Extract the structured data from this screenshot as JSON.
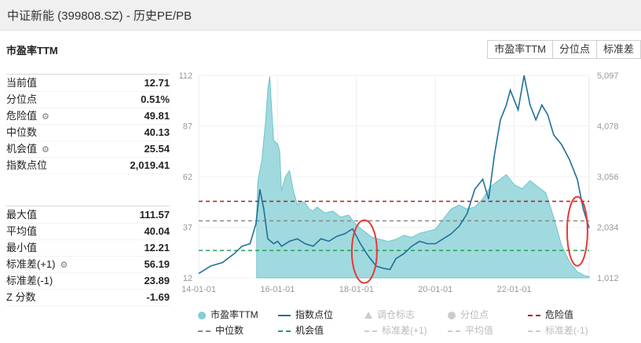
{
  "header": {
    "title": "中证新能 (399808.SZ) - 历史PE/PB"
  },
  "metric": {
    "label": "市盈率TTM"
  },
  "tabs": [
    "市盈率TTM",
    "分位点",
    "标准差"
  ],
  "stats_top": [
    {
      "label": "当前值",
      "value": "12.71",
      "gear": false
    },
    {
      "label": "分位点",
      "value": "0.51%",
      "gear": false
    },
    {
      "label": "危险值",
      "value": "49.81",
      "gear": true
    },
    {
      "label": "中位数",
      "value": "40.13",
      "gear": false
    },
    {
      "label": "机会值",
      "value": "25.54",
      "gear": true
    },
    {
      "label": "指数点位",
      "value": "2,019.41",
      "gear": false
    }
  ],
  "stats_bottom": [
    {
      "label": "最大值",
      "value": "111.57",
      "gear": false
    },
    {
      "label": "平均值",
      "value": "40.04",
      "gear": false
    },
    {
      "label": "最小值",
      "value": "12.21",
      "gear": false
    },
    {
      "label": "标准差(+1)",
      "value": "56.19",
      "gear": true
    },
    {
      "label": "标准差(-1)",
      "value": "23.89",
      "gear": false
    },
    {
      "label": "Z 分数",
      "value": "-1.69",
      "gear": false
    }
  ],
  "colors": {
    "pe_fill": "#8fd3d8",
    "pe_line": "#6cc5cc",
    "index_line": "#1f6f9b",
    "danger": "#b01e1e",
    "median": "#888888",
    "opportunity": "#22a15a",
    "annotation": "#e53935"
  },
  "legend": [
    {
      "label": "市盈率TTM",
      "marker": "circle",
      "color": "#7fcfd5",
      "active": true
    },
    {
      "label": "指数点位",
      "marker": "line",
      "color": "#1f6f9b",
      "active": true
    },
    {
      "label": "调仓标志",
      "marker": "triangle",
      "color": "#cccccc",
      "active": false
    },
    {
      "label": "分位点",
      "marker": "circle",
      "color": "#cccccc",
      "active": false
    },
    {
      "label": "危险值",
      "marker": "dash",
      "color": "#b01e1e",
      "active": true
    },
    {
      "label": "中位数",
      "marker": "dash",
      "color": "#888888",
      "active": true
    },
    {
      "label": "机会值",
      "marker": "dash",
      "color": "#22a15a",
      "active": true
    },
    {
      "label": "标准差(+1)",
      "marker": "dash",
      "color": "#cccccc",
      "active": false
    },
    {
      "label": "平均值",
      "marker": "dash",
      "color": "#cccccc",
      "active": false
    },
    {
      "label": "标准差(-1)",
      "marker": "dash",
      "color": "#cccccc",
      "active": false
    }
  ],
  "chart_data": {
    "type": "area",
    "x_ticks": [
      "14-01-01",
      "16-01-01",
      "18-01-01",
      "20-01-01",
      "22-01-01"
    ],
    "x_range": [
      2014.0,
      2023.9
    ],
    "y_left": {
      "ticks": [
        "112",
        "87",
        "62",
        "37",
        "12"
      ],
      "range": [
        12,
        112
      ]
    },
    "y_right": {
      "ticks": [
        "5,097",
        "4,078",
        "3,056",
        "2,034",
        "1,012"
      ],
      "range": [
        1012,
        5097
      ]
    },
    "reference_lines": [
      {
        "name": "危险值",
        "value": 49.81
      },
      {
        "name": "中位数",
        "value": 40.13
      },
      {
        "name": "机会值",
        "value": 25.54
      }
    ],
    "annotations": [
      {
        "shape": "ellipse",
        "center_x": 2018.2,
        "center_y": 25
      },
      {
        "shape": "ellipse",
        "center_x": 2023.6,
        "center_y": 35
      }
    ],
    "series": [
      {
        "name": "市盈率TTM",
        "axis": "left",
        "kind": "area",
        "x": [
          2015.47,
          2015.5,
          2015.6,
          2015.7,
          2015.75,
          2015.8,
          2015.85,
          2015.9,
          2016.0,
          2016.05,
          2016.1,
          2016.2,
          2016.3,
          2016.4,
          2016.5,
          2016.6,
          2016.7,
          2016.8,
          2016.9,
          2017.0,
          2017.2,
          2017.4,
          2017.6,
          2017.8,
          2018.0,
          2018.2,
          2018.4,
          2018.6,
          2018.8,
          2019.0,
          2019.2,
          2019.4,
          2019.6,
          2019.8,
          2020.0,
          2020.2,
          2020.4,
          2020.6,
          2020.8,
          2021.0,
          2021.2,
          2021.4,
          2021.6,
          2021.8,
          2022.0,
          2022.2,
          2022.4,
          2022.6,
          2022.8,
          2023.0,
          2023.2,
          2023.4,
          2023.6,
          2023.8,
          2023.9
        ],
        "values": [
          45,
          60,
          70,
          90,
          105,
          111.5,
          95,
          80,
          78,
          75,
          55,
          62,
          65,
          55,
          48,
          50,
          49,
          46,
          45,
          47,
          44,
          45,
          42,
          43,
          38,
          35,
          32,
          31,
          30,
          31,
          33,
          32,
          34,
          35,
          36,
          41,
          46,
          48,
          46,
          47,
          51,
          57,
          60,
          63,
          58,
          56,
          60,
          57,
          54,
          42,
          28,
          20,
          15,
          13,
          12.71
        ]
      },
      {
        "name": "指数点位",
        "axis": "right",
        "kind": "line",
        "x": [
          2014.0,
          2014.3,
          2014.6,
          2014.9,
          2015.1,
          2015.3,
          2015.45,
          2015.55,
          2015.65,
          2015.75,
          2015.9,
          2016.0,
          2016.1,
          2016.3,
          2016.5,
          2016.7,
          2016.9,
          2017.1,
          2017.3,
          2017.5,
          2017.7,
          2017.9,
          2018.1,
          2018.3,
          2018.5,
          2018.7,
          2018.85,
          2019.0,
          2019.2,
          2019.4,
          2019.6,
          2019.8,
          2020.0,
          2020.2,
          2020.4,
          2020.6,
          2020.8,
          2021.0,
          2021.2,
          2021.35,
          2021.5,
          2021.65,
          2021.8,
          2021.9,
          2022.0,
          2022.1,
          2022.25,
          2022.4,
          2022.55,
          2022.7,
          2022.85,
          2023.0,
          2023.2,
          2023.4,
          2023.6,
          2023.75,
          2023.9
        ],
        "values": [
          1100,
          1250,
          1320,
          1500,
          1650,
          1700,
          2100,
          2800,
          2400,
          1800,
          1700,
          1750,
          1650,
          1750,
          1800,
          1700,
          1650,
          1800,
          1750,
          1850,
          1900,
          2000,
          1700,
          1450,
          1250,
          1200,
          1180,
          1400,
          1500,
          1650,
          1750,
          1700,
          1700,
          1800,
          1900,
          2050,
          2300,
          2800,
          3000,
          2600,
          3500,
          4200,
          4500,
          4800,
          4600,
          4400,
          5097,
          4500,
          4200,
          4500,
          4300,
          3900,
          3700,
          3400,
          3000,
          2400,
          2019.41
        ]
      }
    ]
  }
}
